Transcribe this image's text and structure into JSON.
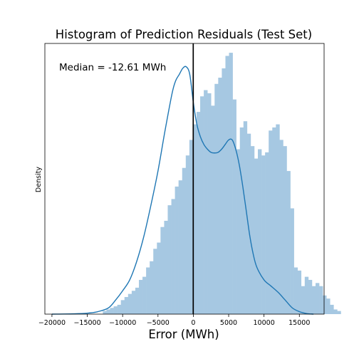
{
  "chart_data": {
    "type": "bar",
    "title": "Histogram of Prediction Residuals (Test Set)",
    "xlabel": "Error (MWh)",
    "ylabel": "Density",
    "annotation": "Median = -12.61 MWh",
    "median_line_x": -12.61,
    "xlim": [
      -21000,
      18500
    ],
    "ylim": [
      0,
      8.7e-05
    ],
    "xticks": [
      -20000,
      -15000,
      -10000,
      -5000,
      0,
      5000,
      10000,
      15000
    ],
    "xtick_labels": [
      "−20000",
      "−15000",
      "−10000",
      "−5000",
      "0",
      "5000",
      "10000",
      "15000"
    ],
    "y_tick_labels_visible": false,
    "grid": false,
    "colors": {
      "bars": "#a6c8e2",
      "kde": "#1f77b4",
      "median": "#000000"
    },
    "histogram": {
      "bin_edges_start": -12800,
      "bin_width": 510,
      "densities": [
        1e-06,
        1.5e-06,
        2e-06,
        2.5e-06,
        3e-06,
        4.5e-06,
        5.5e-06,
        6.5e-06,
        7.5e-06,
        8.5e-06,
        1.1e-05,
        1.2e-05,
        1.5e-05,
        1.7e-05,
        2.1e-05,
        2.3e-05,
        2.8e-05,
        3e-05,
        3.5e-05,
        3.7e-05,
        4.1e-05,
        4.3e-05,
        4.7e-05,
        5.1e-05,
        5.6e-05,
        6.1e-05,
        6.5e-05,
        7e-05,
        7.2e-05,
        7.1e-05,
        6.7e-05,
        7.4e-05,
        7.6e-05,
        7.9e-05,
        8.3e-05,
        8.4e-05,
        6.9e-05,
        5.3e-05,
        6e-05,
        6.2e-05,
        5.8e-05,
        5.4e-05,
        5e-05,
        5.3e-05,
        5.1e-05,
        5.2e-05,
        5.9e-05,
        6e-05,
        6.1e-05,
        5.6e-05,
        5.4e-05,
        4.6e-05,
        3.4e-05,
        1.5e-05,
        1.4e-05,
        9e-06,
        1.2e-05,
        1.1e-05,
        9e-06,
        1e-05,
        9e-06,
        6e-06,
        5e-06,
        3e-06,
        1.5e-06,
        1e-06
      ]
    },
    "kde": {
      "x": [
        -20000,
        -17000,
        -15000,
        -13500,
        -12000,
        -11000,
        -10000,
        -9000,
        -8000,
        -7000,
        -6000,
        -5000,
        -4000,
        -3000,
        -2500,
        -2000,
        -1500,
        -1000,
        -500,
        0,
        500,
        1000,
        1500,
        2000,
        2500,
        3000,
        3500,
        4000,
        4500,
        5000,
        5500,
        6000,
        6500,
        7000,
        7500,
        8000,
        8500,
        9000,
        10000,
        11000,
        12000,
        13000,
        14000,
        15000,
        16000,
        17000
      ],
      "y": [
        0.0,
        1e-07,
        3e-07,
        8e-07,
        2e-06,
        4.5e-06,
        7.5e-06,
        1.1e-05,
        1.7e-05,
        2.5e-05,
        3.5e-05,
        4.6e-05,
        5.9e-05,
        7.1e-05,
        7.5e-05,
        7.7e-05,
        7.9e-05,
        7.95e-05,
        7.7e-05,
        6.8e-05,
        6.1e-05,
        5.7e-05,
        5.45e-05,
        5.3e-05,
        5.2e-05,
        5.18e-05,
        5.2e-05,
        5.3e-05,
        5.45e-05,
        5.6e-05,
        5.6e-05,
        5.3e-05,
        4.8e-05,
        4.1e-05,
        3.3e-05,
        2.5e-05,
        1.9e-05,
        1.5e-05,
        1.1e-05,
        9e-06,
        7e-06,
        4.5e-06,
        2e-06,
        8e-07,
        2e-07,
        0.0
      ]
    }
  }
}
